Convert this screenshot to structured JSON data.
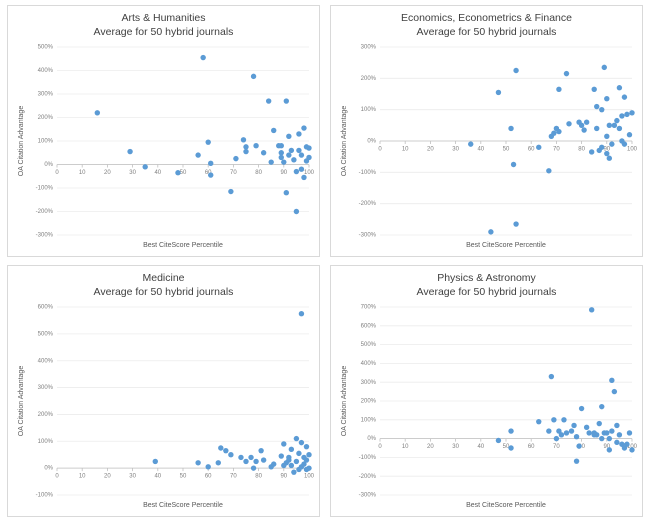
{
  "chart_data": [
    {
      "type": "scatter",
      "title": "Arts & Humanities",
      "subtitle": "Average for 50 hybrid journals",
      "x_label": "Best CiteScore Percentile",
      "y_label": "OA Citation Advantage",
      "grid": true,
      "xlim": [
        0,
        100
      ],
      "xticks": [
        0,
        10,
        20,
        30,
        40,
        50,
        60,
        70,
        80,
        90,
        100
      ],
      "ylim": [
        -300,
        500
      ],
      "yticks": [
        {
          "value": -300,
          "label": "-300%"
        },
        {
          "value": -200,
          "label": "-200%"
        },
        {
          "value": -100,
          "label": "-100%"
        },
        {
          "value": 0,
          "label": "0%"
        },
        {
          "value": 100,
          "label": "100%"
        },
        {
          "value": 200,
          "label": "200%"
        },
        {
          "value": 300,
          "label": "300%"
        },
        {
          "value": 400,
          "label": "400%"
        },
        {
          "value": 500,
          "label": "500%"
        }
      ],
      "series": [
        {
          "color": "#5b9bd5",
          "x": [
            16,
            29,
            35,
            48,
            56,
            58,
            60,
            61,
            61,
            69,
            71,
            74,
            75,
            75,
            78,
            79,
            82,
            84,
            85,
            86,
            88,
            89,
            89,
            90,
            91,
            91,
            92,
            93,
            94,
            95,
            95,
            96,
            96,
            97,
            97,
            98,
            98,
            99,
            99,
            100,
            100,
            92,
            89
          ],
          "values": [
            220,
            55,
            -10,
            -35,
            40,
            455,
            95,
            5,
            -45,
            -115,
            25,
            105,
            75,
            55,
            375,
            80,
            50,
            270,
            10,
            145,
            80,
            80,
            30,
            10,
            270,
            -120,
            120,
            60,
            20,
            -200,
            -30,
            130,
            60,
            40,
            -20,
            155,
            -55,
            75,
            15,
            30,
            70,
            40,
            50
          ]
        }
      ]
    },
    {
      "type": "scatter",
      "title": "Economics, Econometrics & Finance",
      "subtitle": "Average for 50 hybrid journals",
      "x_label": "Best CiteScore Percentile",
      "y_label": "OA Citation Advantage",
      "grid": true,
      "xlim": [
        0,
        100
      ],
      "xticks": [
        0,
        10,
        20,
        30,
        40,
        50,
        60,
        70,
        80,
        90,
        100
      ],
      "ylim": [
        -300,
        300
      ],
      "yticks": [
        {
          "value": -300,
          "label": "-300%"
        },
        {
          "value": -200,
          "label": "-200%"
        },
        {
          "value": -100,
          "label": "-100%"
        },
        {
          "value": 0,
          "label": "0%"
        },
        {
          "value": 100,
          "label": "100%"
        },
        {
          "value": 200,
          "label": "200%"
        },
        {
          "value": 300,
          "label": "300%"
        }
      ],
      "series": [
        {
          "color": "#5b9bd5",
          "x": [
            36,
            44,
            47,
            52,
            53,
            54,
            54,
            63,
            67,
            68,
            69,
            70,
            71,
            71,
            74,
            75,
            79,
            80,
            81,
            82,
            84,
            85,
            86,
            86,
            87,
            88,
            88,
            89,
            90,
            90,
            90,
            91,
            91,
            92,
            93,
            94,
            95,
            95,
            96,
            96,
            97,
            97,
            98,
            99,
            100
          ],
          "values": [
            -10,
            -290,
            155,
            40,
            -75,
            225,
            -265,
            -20,
            -95,
            15,
            25,
            40,
            30,
            165,
            215,
            55,
            60,
            50,
            35,
            60,
            -35,
            165,
            40,
            110,
            -30,
            100,
            -20,
            235,
            15,
            -40,
            135,
            50,
            -55,
            -10,
            50,
            65,
            170,
            40,
            80,
            0,
            140,
            -10,
            85,
            20,
            90
          ]
        }
      ]
    },
    {
      "type": "scatter",
      "title": "Medicine",
      "subtitle": "Average for 50 hybrid journals",
      "x_label": "Best CiteScore Percentile",
      "y_label": "OA Citation Advantage",
      "grid": true,
      "xlim": [
        0,
        100
      ],
      "xticks": [
        0,
        10,
        20,
        30,
        40,
        50,
        60,
        70,
        80,
        90,
        100
      ],
      "ylim": [
        -100,
        600
      ],
      "yticks": [
        {
          "value": -100,
          "label": "-100%"
        },
        {
          "value": 0,
          "label": "0%"
        },
        {
          "value": 100,
          "label": "100%"
        },
        {
          "value": 200,
          "label": "200%"
        },
        {
          "value": 300,
          "label": "300%"
        },
        {
          "value": 400,
          "label": "400%"
        },
        {
          "value": 500,
          "label": "500%"
        },
        {
          "value": 600,
          "label": "600%"
        }
      ],
      "series": [
        {
          "color": "#5b9bd5",
          "x": [
            39,
            56,
            60,
            64,
            65,
            67,
            69,
            73,
            75,
            77,
            78,
            79,
            81,
            82,
            85,
            86,
            89,
            90,
            91,
            92,
            93,
            93,
            94,
            95,
            95,
            96,
            96,
            97,
            97,
            97,
            98,
            98,
            99,
            99,
            99,
            100,
            100,
            90,
            92
          ],
          "values": [
            25,
            20,
            5,
            20,
            75,
            65,
            50,
            40,
            25,
            40,
            0,
            25,
            65,
            30,
            5,
            15,
            45,
            90,
            20,
            40,
            10,
            70,
            -15,
            110,
            25,
            55,
            -5,
            95,
            5,
            575,
            40,
            15,
            80,
            30,
            -5,
            50,
            0,
            10,
            30
          ]
        }
      ]
    },
    {
      "type": "scatter",
      "title": "Physics & Astronomy",
      "subtitle": "Average for 50 hybrid journals",
      "x_label": "Best CiteScore Percentile",
      "y_label": "OA Citation Advantage",
      "grid": true,
      "xlim": [
        0,
        100
      ],
      "xticks": [
        0,
        10,
        20,
        30,
        40,
        50,
        60,
        70,
        80,
        90,
        100
      ],
      "ylim": [
        -300,
        700
      ],
      "yticks": [
        {
          "value": -300,
          "label": "-300%"
        },
        {
          "value": -200,
          "label": "-200%"
        },
        {
          "value": -100,
          "label": "-100%"
        },
        {
          "value": 0,
          "label": "0%"
        },
        {
          "value": 100,
          "label": "100%"
        },
        {
          "value": 200,
          "label": "200%"
        },
        {
          "value": 300,
          "label": "300%"
        },
        {
          "value": 400,
          "label": "400%"
        },
        {
          "value": 500,
          "label": "500%"
        },
        {
          "value": 600,
          "label": "600%"
        },
        {
          "value": 700,
          "label": "700%"
        }
      ],
      "series": [
        {
          "color": "#5b9bd5",
          "x": [
            47,
            52,
            52,
            63,
            67,
            68,
            69,
            70,
            71,
            72,
            73,
            74,
            76,
            77,
            78,
            78,
            79,
            80,
            82,
            83,
            84,
            85,
            86,
            87,
            88,
            88,
            89,
            90,
            91,
            91,
            92,
            92,
            93,
            94,
            94,
            95,
            96,
            97,
            98,
            99,
            100,
            85
          ],
          "values": [
            -10,
            40,
            -50,
            90,
            40,
            330,
            100,
            0,
            40,
            20,
            100,
            30,
            40,
            70,
            10,
            -120,
            -40,
            160,
            60,
            30,
            685,
            20,
            20,
            80,
            170,
            0,
            30,
            30,
            -60,
            0,
            40,
            310,
            250,
            70,
            -20,
            20,
            -30,
            -50,
            -30,
            30,
            -60,
            30
          ]
        }
      ]
    }
  ]
}
